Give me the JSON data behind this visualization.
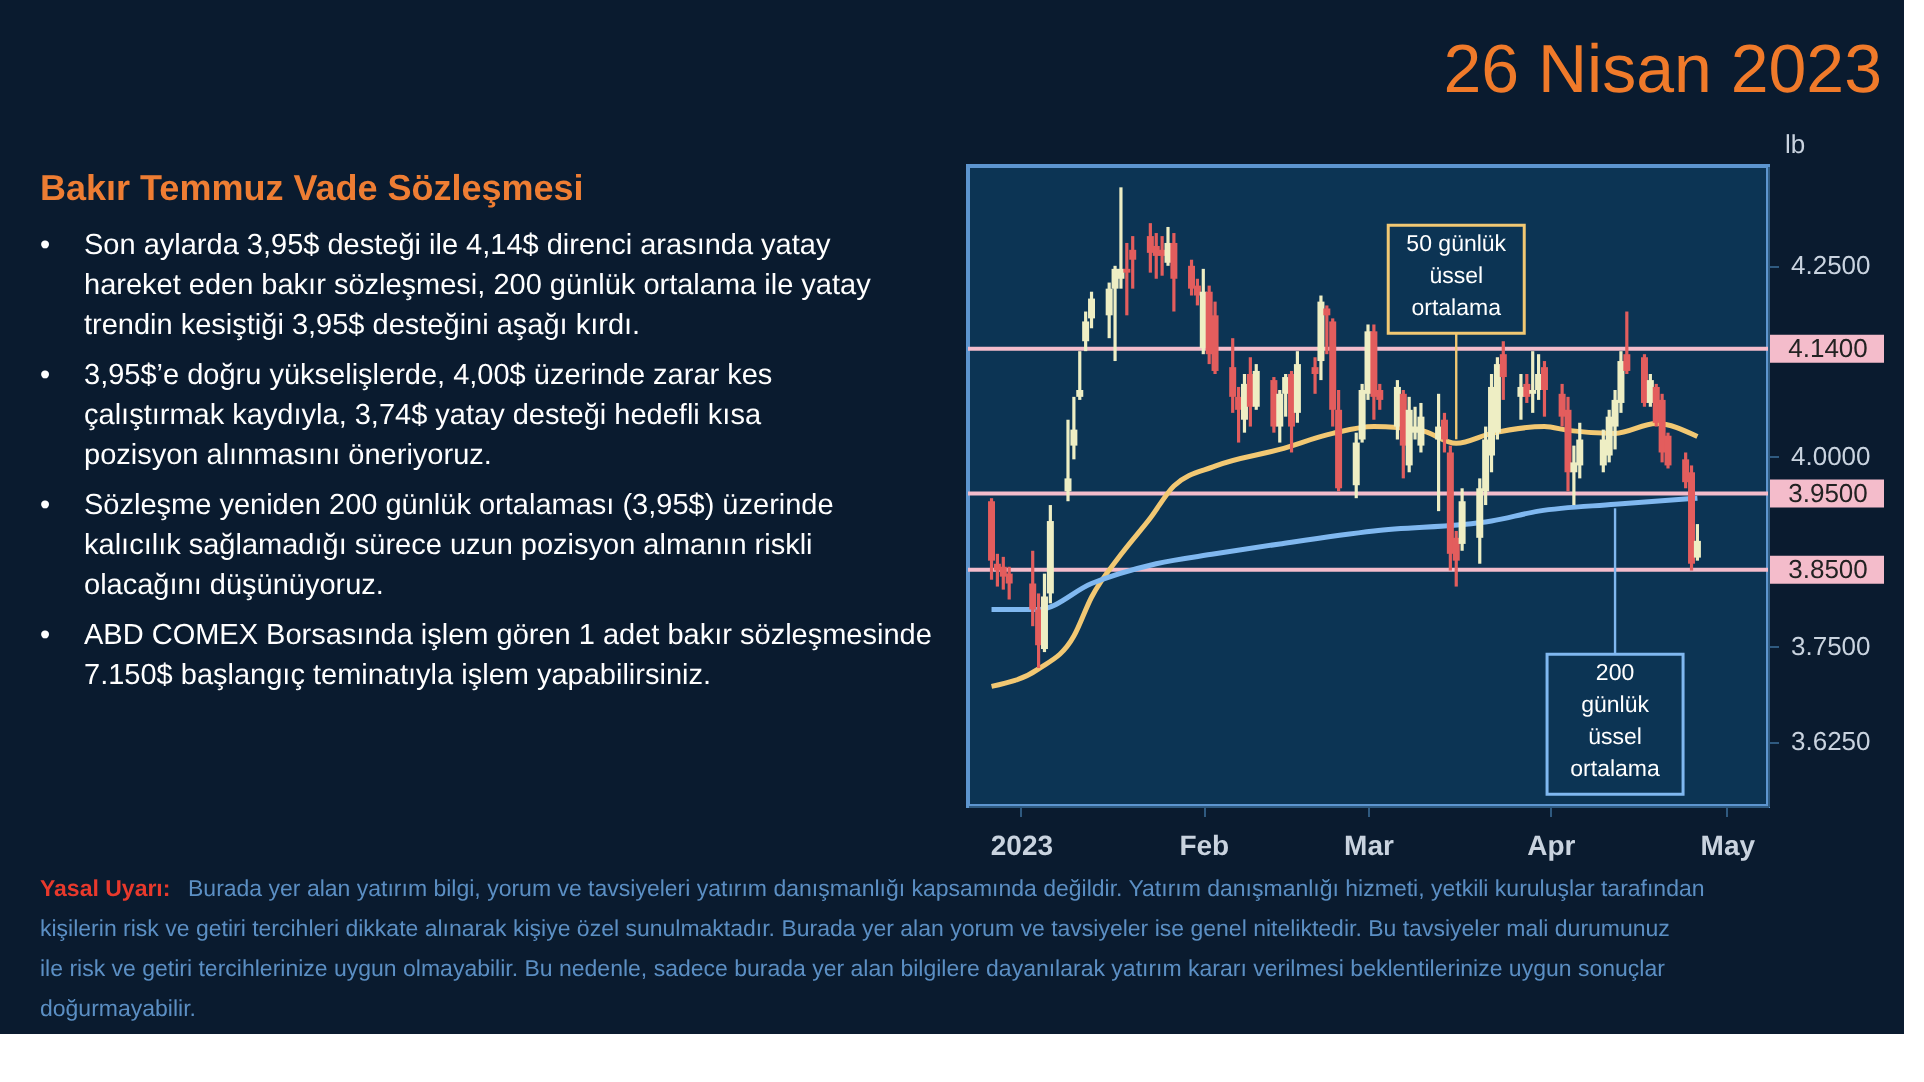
{
  "chart_data": {
    "type": "candlestick",
    "title": "Bakır Temmuz Vade Sözleşmesi",
    "subtitle": "26 Nisan 2023",
    "ylabel": "lb",
    "grid": false,
    "x": [
      "2022-12-27",
      "2022-12-28",
      "2022-12-29",
      "2022-12-30",
      "2023-01-03",
      "2023-01-04",
      "2023-01-05",
      "2023-01-06",
      "2023-01-09",
      "2023-01-10",
      "2023-01-11",
      "2023-01-12",
      "2023-01-13",
      "2023-01-16",
      "2023-01-17",
      "2023-01-18",
      "2023-01-19",
      "2023-01-20",
      "2023-01-23",
      "2023-01-24",
      "2023-01-25",
      "2023-01-26",
      "2023-01-27",
      "2023-01-30",
      "2023-01-31",
      "2023-02-01",
      "2023-02-02",
      "2023-02-03",
      "2023-02-06",
      "2023-02-07",
      "2023-02-08",
      "2023-02-09",
      "2023-02-10",
      "2023-02-13",
      "2023-02-14",
      "2023-02-15",
      "2023-02-16",
      "2023-02-17",
      "2023-02-20",
      "2023-02-21",
      "2023-02-22",
      "2023-02-23",
      "2023-02-24",
      "2023-02-27",
      "2023-02-28",
      "2023-03-01",
      "2023-03-02",
      "2023-03-03",
      "2023-03-06",
      "2023-03-07",
      "2023-03-08",
      "2023-03-09",
      "2023-03-10",
      "2023-03-13",
      "2023-03-14",
      "2023-03-15",
      "2023-03-16",
      "2023-03-17",
      "2023-03-20",
      "2023-03-21",
      "2023-03-22",
      "2023-03-23",
      "2023-03-24",
      "2023-03-27",
      "2023-03-28",
      "2023-03-29",
      "2023-03-30",
      "2023-03-31",
      "2023-04-03",
      "2023-04-04",
      "2023-04-05",
      "2023-04-06",
      "2023-04-10",
      "2023-04-11",
      "2023-04-12",
      "2023-04-13",
      "2023-04-14",
      "2023-04-17",
      "2023-04-18",
      "2023-04-19",
      "2023-04-20",
      "2023-04-21",
      "2023-04-24",
      "2023-04-25",
      "2023-04-26"
    ],
    "ohlc": [
      [
        3.94,
        3.944,
        3.837,
        3.862
      ],
      [
        3.858,
        3.871,
        3.828,
        3.849
      ],
      [
        3.854,
        3.867,
        3.824,
        3.841
      ],
      [
        3.845,
        3.854,
        3.811,
        3.832
      ],
      [
        3.832,
        3.875,
        3.776,
        3.798
      ],
      [
        3.798,
        3.819,
        3.721,
        3.751
      ],
      [
        3.746,
        3.845,
        3.742,
        3.815
      ],
      [
        3.819,
        3.935,
        3.806,
        3.914
      ],
      [
        3.953,
        4.047,
        3.94,
        3.97
      ],
      [
        4.013,
        4.077,
        3.995,
        4.034
      ],
      [
        4.077,
        4.137,
        4.073,
        4.086
      ],
      [
        4.15,
        4.189,
        4.137,
        4.176
      ],
      [
        4.18,
        4.215,
        4.167,
        4.206
      ],
      [
        4.184,
        4.227,
        4.154,
        4.219
      ],
      [
        4.219,
        4.249,
        4.124,
        4.245
      ],
      [
        4.232,
        4.352,
        4.219,
        4.245
      ],
      [
        4.245,
        4.279,
        4.184,
        4.24
      ],
      [
        4.27,
        4.288,
        4.219,
        4.257
      ],
      [
        4.288,
        4.305,
        4.24,
        4.266
      ],
      [
        4.275,
        4.292,
        4.232,
        4.262
      ],
      [
        4.27,
        4.288,
        4.236,
        4.262
      ],
      [
        4.253,
        4.3,
        4.249,
        4.279
      ],
      [
        4.279,
        4.292,
        4.189,
        4.232
      ],
      [
        4.249,
        4.257,
        4.21,
        4.219
      ],
      [
        4.223,
        4.232,
        4.197,
        4.21
      ],
      [
        4.141,
        4.245,
        4.133,
        4.215
      ],
      [
        4.215,
        4.223,
        4.12,
        4.133
      ],
      [
        4.184,
        4.202,
        4.107,
        4.111
      ],
      [
        4.116,
        4.154,
        4.056,
        4.077
      ],
      [
        4.077,
        4.09,
        4.017,
        4.06
      ],
      [
        4.047,
        4.107,
        4.03,
        4.094
      ],
      [
        4.107,
        4.129,
        4.038,
        4.064
      ],
      [
        4.064,
        4.12,
        4.06,
        4.111
      ],
      [
        4.099,
        4.103,
        4.03,
        4.038
      ],
      [
        4.038,
        4.086,
        4.017,
        4.081
      ],
      [
        4.081,
        4.107,
        4.051,
        4.103
      ],
      [
        4.107,
        4.111,
        4.004,
        4.038
      ],
      [
        4.056,
        4.137,
        4.043,
        4.12
      ],
      [
        4.116,
        4.129,
        4.081,
        4.107
      ],
      [
        4.124,
        4.21,
        4.099,
        4.202
      ],
      [
        4.193,
        4.197,
        4.133,
        4.184
      ],
      [
        4.176,
        4.18,
        4.038,
        4.06
      ],
      [
        4.06,
        4.086,
        3.953,
        3.957
      ],
      [
        3.961,
        4.03,
        3.944,
        4.017
      ],
      [
        4.021,
        4.094,
        4.017,
        4.086
      ],
      [
        4.081,
        4.172,
        4.073,
        4.163
      ],
      [
        4.163,
        4.172,
        4.047,
        4.077
      ],
      [
        4.086,
        4.094,
        4.06,
        4.073
      ],
      [
        4.038,
        4.099,
        4.021,
        4.09
      ],
      [
        4.081,
        4.086,
        3.97,
        4.013
      ],
      [
        3.987,
        4.077,
        3.978,
        4.06
      ],
      [
        4.03,
        4.064,
        4.021,
        4.038
      ],
      [
        4.013,
        4.069,
        4.004,
        4.051
      ],
      [
        4.021,
        4.081,
        3.927,
        4.038
      ],
      [
        4.047,
        4.056,
        4.004,
        4.021
      ],
      [
        4.004,
        4.013,
        3.849,
        3.871
      ],
      [
        3.892,
        3.901,
        3.828,
        3.862
      ],
      [
        3.884,
        3.957,
        3.875,
        3.94
      ],
      [
        3.892,
        3.97,
        3.858,
        3.957
      ],
      [
        3.953,
        4.038,
        3.935,
        4.021
      ],
      [
        4.0,
        4.107,
        3.978,
        4.09
      ],
      [
        4.03,
        4.129,
        4.021,
        4.12
      ],
      [
        4.133,
        4.15,
        4.073,
        4.103
      ],
      [
        4.077,
        4.107,
        4.047,
        4.09
      ],
      [
        4.094,
        4.107,
        4.069,
        4.077
      ],
      [
        4.081,
        4.137,
        4.056,
        4.086
      ],
      [
        4.086,
        4.133,
        4.073,
        4.107
      ],
      [
        4.116,
        4.124,
        4.051,
        4.086
      ],
      [
        4.081,
        4.094,
        4.038,
        4.051
      ],
      [
        4.06,
        4.077,
        3.953,
        3.978
      ],
      [
        3.978,
        4.013,
        3.935,
        3.991
      ],
      [
        3.987,
        4.043,
        3.97,
        4.021
      ],
      [
        3.987,
        4.034,
        3.978,
        4.021
      ],
      [
        4.0,
        4.06,
        3.991,
        4.051
      ],
      [
        4.038,
        4.086,
        4.008,
        4.073
      ],
      [
        4.069,
        4.137,
        4.056,
        4.124
      ],
      [
        4.133,
        4.189,
        4.107,
        4.111
      ],
      [
        4.129,
        4.133,
        4.064,
        4.069
      ],
      [
        4.069,
        4.107,
        4.064,
        4.099
      ],
      [
        4.09,
        4.094,
        4.038,
        4.043
      ],
      [
        4.073,
        4.081,
        3.991,
        4.004
      ],
      [
        4.026,
        4.03,
        3.983,
        3.987
      ],
      [
        3.995,
        4.004,
        3.957,
        3.965
      ],
      [
        3.978,
        3.987,
        3.849,
        3.858
      ],
      [
        3.866,
        3.91,
        3.862,
        3.888
      ]
    ],
    "colors": [
      "#e35d5d",
      "#e35d5d",
      "#e35d5d",
      "#e35d5d",
      "#e35d5d",
      "#e35d5d",
      "#eeeec4",
      "#eeeec4",
      "#eeeec4",
      "#eeeec4",
      "#eeeec4",
      "#eeeec4",
      "#eeeec4",
      "#eeeec4",
      "#eeeec4",
      "#eeeec4",
      "#e35d5d",
      "#e35d5d",
      "#e35d5d",
      "#e35d5d",
      "#e35d5d",
      "#eeeec4",
      "#e35d5d",
      "#e35d5d",
      "#e35d5d",
      "#eeeec4",
      "#e35d5d",
      "#e35d5d",
      "#e35d5d",
      "#e35d5d",
      "#eeeec4",
      "#e35d5d",
      "#eeeec4",
      "#e35d5d",
      "#eeeec4",
      "#eeeec4",
      "#e35d5d",
      "#eeeec4",
      "#e35d5d",
      "#eeeec4",
      "#e35d5d",
      "#e35d5d",
      "#e35d5d",
      "#eeeec4",
      "#eeeec4",
      "#eeeec4",
      "#e35d5d",
      "#e35d5d",
      "#eeeec4",
      "#e35d5d",
      "#eeeec4",
      "#eeeec4",
      "#eeeec4",
      "#eeeec4",
      "#e35d5d",
      "#e35d5d",
      "#e35d5d",
      "#eeeec4",
      "#eeeec4",
      "#eeeec4",
      "#eeeec4",
      "#eeeec4",
      "#e35d5d",
      "#eeeec4",
      "#e35d5d",
      "#eeeec4",
      "#eeeec4",
      "#e35d5d",
      "#e35d5d",
      "#e35d5d",
      "#eeeec4",
      "#eeeec4",
      "#eeeec4",
      "#eeeec4",
      "#eeeec4",
      "#eeeec4",
      "#e35d5d",
      "#e35d5d",
      "#eeeec4",
      "#e35d5d",
      "#e35d5d",
      "#e35d5d",
      "#e35d5d",
      "#e35d5d",
      "#eeeec4"
    ],
    "series": [
      {
        "type": "line",
        "color": "#f2c873",
        "x": [
          "2022-12-27",
          "2023-01-04",
          "2023-01-10",
          "2023-01-13",
          "2023-01-18",
          "2023-01-23",
          "2023-01-27",
          "2023-02-03",
          "2023-02-14",
          "2023-02-23",
          "2023-03-02",
          "2023-03-10",
          "2023-03-16",
          "2023-03-22",
          "2023-03-31",
          "2023-04-04",
          "2023-04-12",
          "2023-04-19",
          "2023-04-26"
        ],
        "values": [
          3.697,
          3.72,
          3.763,
          3.814,
          3.87,
          3.918,
          3.96,
          3.986,
          4.008,
          4.029,
          4.038,
          4.033,
          4.016,
          4.029,
          4.038,
          4.033,
          4.029,
          4.042,
          4.025
        ]
      },
      {
        "type": "line",
        "color": "#80b8f0",
        "x": [
          "2022-12-27",
          "2023-01-04",
          "2023-01-13",
          "2023-01-24",
          "2023-02-03",
          "2023-02-14",
          "2023-03-02",
          "2023-03-22",
          "2023-03-30",
          "2023-04-12",
          "2023-04-26"
        ],
        "values": [
          3.798,
          3.798,
          3.832,
          3.858,
          3.871,
          3.884,
          3.901,
          3.914,
          3.927,
          3.936,
          3.944
        ]
      }
    ],
    "xlim": [
      "2022-12-23",
      "2023-05-08"
    ],
    "xticks": [
      {
        "value": "2023-01-01",
        "label": "2023"
      },
      {
        "value": "2023-02-01",
        "label": "Feb"
      },
      {
        "value": "2023-03-01",
        "label": "Mar"
      },
      {
        "value": "2023-04-01",
        "label": "Apr"
      },
      {
        "value": "2023-05-01",
        "label": "May"
      }
    ],
    "ylim": [
      3.54,
      4.38
    ],
    "yticks": [
      {
        "value": 4.25,
        "label": "4.2500"
      },
      {
        "value": 4.0,
        "label": "4.0000"
      },
      {
        "value": 3.75,
        "label": "3.7500"
      },
      {
        "value": 3.625,
        "label": "3.6250"
      }
    ],
    "ref_lines": [
      {
        "axis": "y",
        "value": 4.14,
        "label": "4.1400",
        "color": "#f4bccb"
      },
      {
        "axis": "y",
        "value": 3.95,
        "label": "3.9500",
        "color": "#f4bccb"
      },
      {
        "axis": "y",
        "value": 3.85,
        "label": "3.8500",
        "color": "#f4bccb"
      }
    ],
    "annotations": [
      "• Son aylarda 3,95$ desteği ile 4,14$ direnci arasında yatay hareket eden bakır sözleşmesi, 200 günlük ortalama ile yatay trendin kesiştiği 3,95$ desteğini aşağı kırdı.",
      "• 3,95$’e doğru yükselişlerde, 4,00$ üzerinde zarar kes çalıştırmak kaydıyla, 3,74$ yatay desteği hedefli kısa pozisyon alınmasını öneriyoruz.",
      "• Sözleşme yeniden 200 günlük ortalaması (3,95$) üzerinde kalıcılık sağlamadığı sürece uzun pozisyon almanın riskli olacağını düşünüyoruz.",
      "• ABD COMEX Borsasında işlem gören 1 adet bakır sözleşmesinde 7.150$ başlangıç teminatıyla işlem yapabilirsiniz.",
      {
        "text": "50 günlük üssel ortalama",
        "x": "2023-03-16",
        "y": 4.016
      },
      {
        "text": "200 günlük üssel ortalama",
        "x": "2023-04-12",
        "y": 3.936
      },
      "Yasal Uyarı:",
      "Burada yer alan yatırım bilgi, yorum ve tavsiyeleri yatırım danışmanlığı kapsamında değildir. Yatırım danışmanlığı hizmeti, yetkili kuruluşlar tarafından kişilerin risk ve getiri tercihleri dikkate alınarak kişiye özel sunulmaktadır. Burada yer alan yorum ve tavsiyeler ise genel niteliktedir. Bu tavsiyeler mali durumunuz ile risk ve getiri tercihlerinize uygun olmayabilir. Bu nedenle, sadece burada yer alan bilgilere dayanılarak yatırım kararı verilmesi beklentilerinize uygun sonuçlar doğurmayabilir."
    ]
  }
}
